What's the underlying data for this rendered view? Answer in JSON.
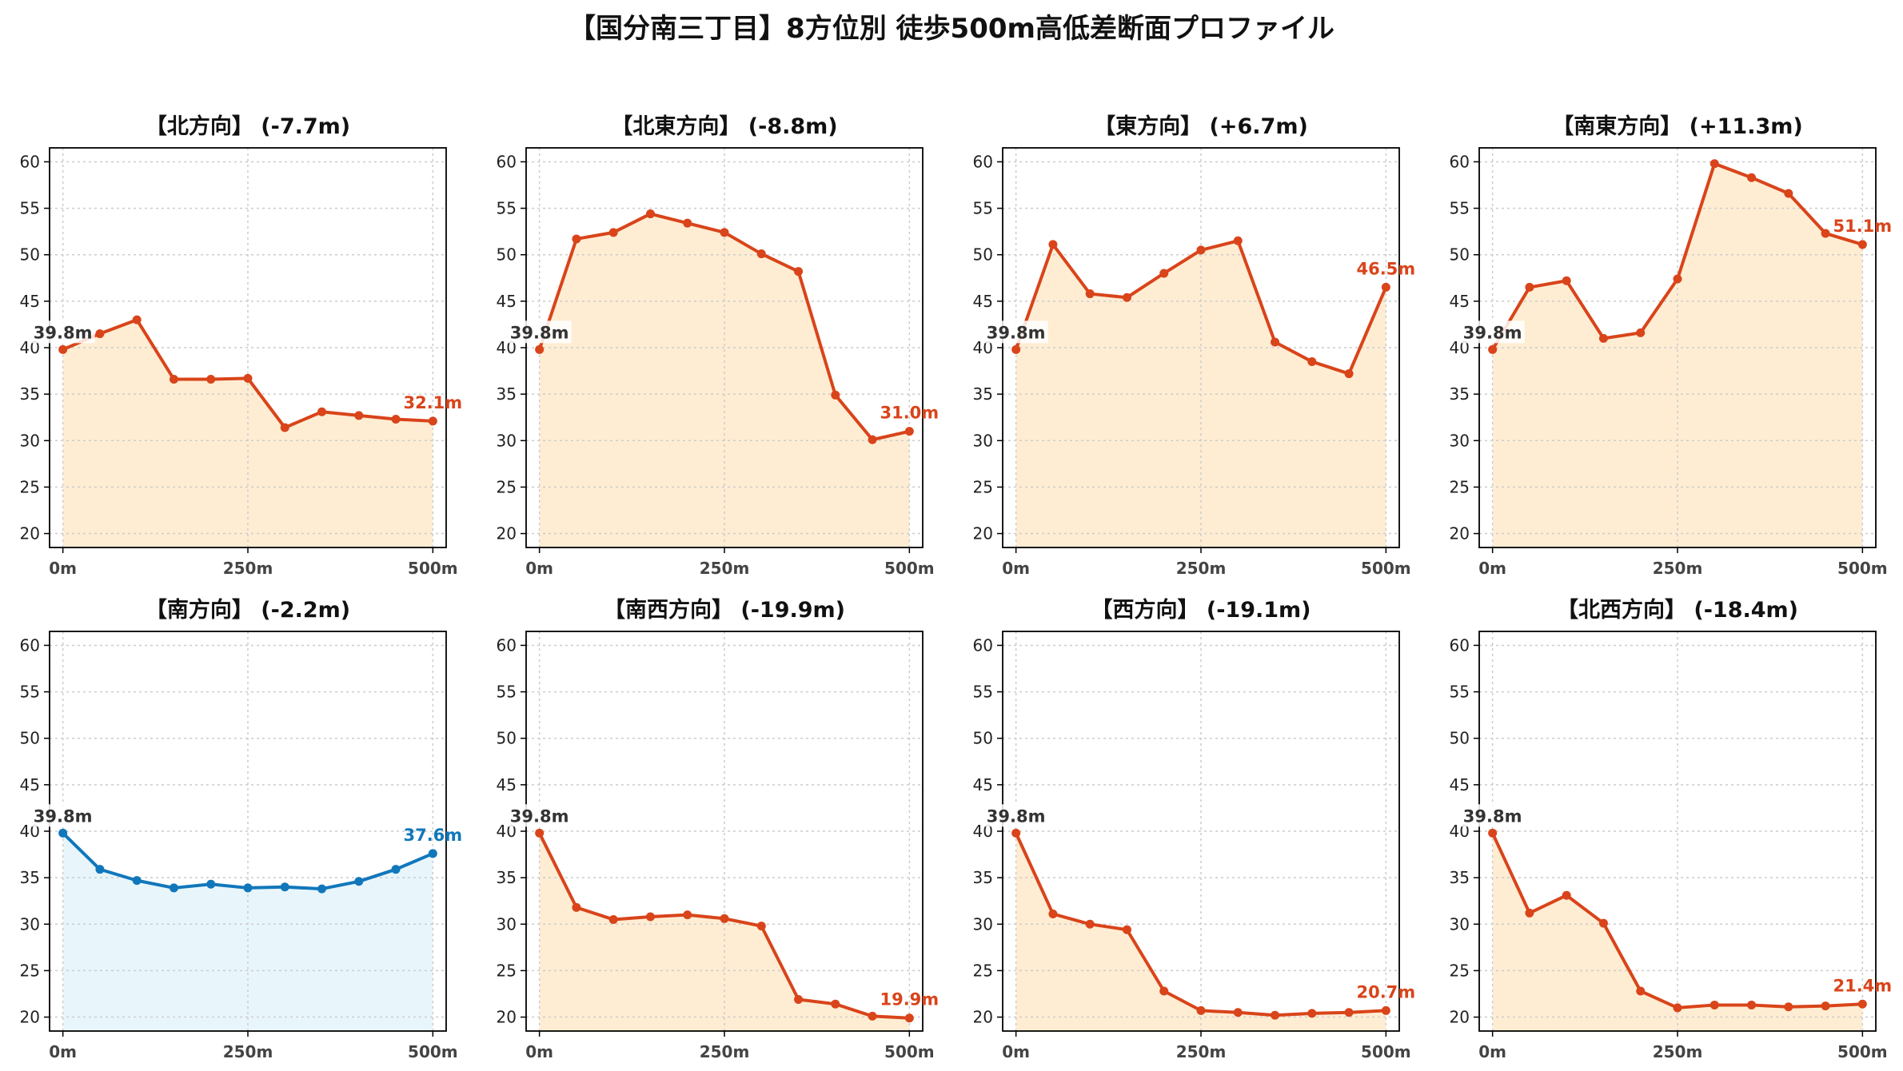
{
  "figure": {
    "title": "【国分南三丁目】8方位別 徒歩500m高低差断面プロファイル"
  },
  "colors": {
    "down_line": "#d9441a",
    "down_fill": "#ffedd3",
    "up_line": "#1177bb",
    "up_fill": "#e8f6fc",
    "start_label": "#333333",
    "grid": "#cccccc"
  },
  "chart_data": [
    {
      "type": "area",
      "title": "【北方向】 (-7.7m)",
      "x": [
        0,
        50,
        100,
        150,
        200,
        250,
        300,
        350,
        400,
        450,
        500
      ],
      "values": [
        39.8,
        41.5,
        43.0,
        36.6,
        36.6,
        36.7,
        31.4,
        33.1,
        32.7,
        32.3,
        32.1
      ],
      "xticks": [
        "0m",
        "250m",
        "500m"
      ],
      "xtick_values": [
        0,
        250,
        500
      ],
      "yticks": [
        20,
        25,
        30,
        35,
        40,
        45,
        50,
        55,
        60
      ],
      "ylim": [
        18.5,
        61.5
      ],
      "xlim": [
        -18,
        518
      ],
      "start_label": "39.8m",
      "end_label": "32.1m",
      "style": "down",
      "grid": true
    },
    {
      "type": "area",
      "title": "【北東方向】 (-8.8m)",
      "x": [
        0,
        50,
        100,
        150,
        200,
        250,
        300,
        350,
        400,
        450,
        500
      ],
      "values": [
        39.8,
        51.7,
        52.4,
        54.4,
        53.4,
        52.4,
        50.1,
        48.2,
        34.9,
        30.1,
        31.0
      ],
      "xticks": [
        "0m",
        "250m",
        "500m"
      ],
      "xtick_values": [
        0,
        250,
        500
      ],
      "yticks": [
        20,
        25,
        30,
        35,
        40,
        45,
        50,
        55,
        60
      ],
      "ylim": [
        18.5,
        61.5
      ],
      "xlim": [
        -18,
        518
      ],
      "start_label": "39.8m",
      "end_label": "31.0m",
      "style": "down",
      "grid": true
    },
    {
      "type": "area",
      "title": "【東方向】 (+6.7m)",
      "x": [
        0,
        50,
        100,
        150,
        200,
        250,
        300,
        350,
        400,
        450,
        500
      ],
      "values": [
        39.8,
        51.1,
        45.8,
        45.4,
        48.0,
        50.5,
        51.5,
        40.6,
        38.5,
        37.2,
        46.5
      ],
      "xticks": [
        "0m",
        "250m",
        "500m"
      ],
      "xtick_values": [
        0,
        250,
        500
      ],
      "yticks": [
        20,
        25,
        30,
        35,
        40,
        45,
        50,
        55,
        60
      ],
      "ylim": [
        18.5,
        61.5
      ],
      "xlim": [
        -18,
        518
      ],
      "start_label": "39.8m",
      "end_label": "46.5m",
      "style": "down",
      "grid": true
    },
    {
      "type": "area",
      "title": "【南東方向】 (+11.3m)",
      "x": [
        0,
        50,
        100,
        150,
        200,
        250,
        300,
        350,
        400,
        450,
        500
      ],
      "values": [
        39.8,
        46.5,
        47.2,
        41.0,
        41.6,
        47.4,
        59.8,
        58.3,
        56.6,
        52.3,
        51.1
      ],
      "xticks": [
        "0m",
        "250m",
        "500m"
      ],
      "xtick_values": [
        0,
        250,
        500
      ],
      "yticks": [
        20,
        25,
        30,
        35,
        40,
        45,
        50,
        55,
        60
      ],
      "ylim": [
        18.5,
        61.5
      ],
      "xlim": [
        -18,
        518
      ],
      "start_label": "39.8m",
      "end_label": "51.1m",
      "style": "down",
      "grid": true
    },
    {
      "type": "area",
      "title": "【南方向】 (-2.2m)",
      "x": [
        0,
        50,
        100,
        150,
        200,
        250,
        300,
        350,
        400,
        450,
        500
      ],
      "values": [
        39.8,
        35.9,
        34.7,
        33.9,
        34.3,
        33.9,
        34.0,
        33.8,
        34.6,
        35.9,
        37.6
      ],
      "xticks": [
        "0m",
        "250m",
        "500m"
      ],
      "xtick_values": [
        0,
        250,
        500
      ],
      "yticks": [
        20,
        25,
        30,
        35,
        40,
        45,
        50,
        55,
        60
      ],
      "ylim": [
        18.5,
        61.5
      ],
      "xlim": [
        -18,
        518
      ],
      "start_label": "39.8m",
      "end_label": "37.6m",
      "style": "up",
      "grid": true
    },
    {
      "type": "area",
      "title": "【南西方向】 (-19.9m)",
      "x": [
        0,
        50,
        100,
        150,
        200,
        250,
        300,
        350,
        400,
        450,
        500
      ],
      "values": [
        39.8,
        31.8,
        30.5,
        30.8,
        31.0,
        30.6,
        29.8,
        21.9,
        21.4,
        20.1,
        19.9
      ],
      "xticks": [
        "0m",
        "250m",
        "500m"
      ],
      "xtick_values": [
        0,
        250,
        500
      ],
      "yticks": [
        20,
        25,
        30,
        35,
        40,
        45,
        50,
        55,
        60
      ],
      "ylim": [
        18.5,
        61.5
      ],
      "xlim": [
        -18,
        518
      ],
      "start_label": "39.8m",
      "end_label": "19.9m",
      "style": "down",
      "grid": true
    },
    {
      "type": "area",
      "title": "【西方向】 (-19.1m)",
      "x": [
        0,
        50,
        100,
        150,
        200,
        250,
        300,
        350,
        400,
        450,
        500
      ],
      "values": [
        39.8,
        31.1,
        30.0,
        29.4,
        22.8,
        20.7,
        20.5,
        20.2,
        20.4,
        20.5,
        20.7
      ],
      "xticks": [
        "0m",
        "250m",
        "500m"
      ],
      "xtick_values": [
        0,
        250,
        500
      ],
      "yticks": [
        20,
        25,
        30,
        35,
        40,
        45,
        50,
        55,
        60
      ],
      "ylim": [
        18.5,
        61.5
      ],
      "xlim": [
        -18,
        518
      ],
      "start_label": "39.8m",
      "end_label": "20.7m",
      "style": "down",
      "grid": true
    },
    {
      "type": "area",
      "title": "【北西方向】 (-18.4m)",
      "x": [
        0,
        50,
        100,
        150,
        200,
        250,
        300,
        350,
        400,
        450,
        500
      ],
      "values": [
        39.8,
        31.2,
        33.1,
        30.1,
        22.8,
        21.0,
        21.3,
        21.3,
        21.1,
        21.2,
        21.4
      ],
      "xticks": [
        "0m",
        "250m",
        "500m"
      ],
      "xtick_values": [
        0,
        250,
        500
      ],
      "yticks": [
        20,
        25,
        30,
        35,
        40,
        45,
        50,
        55,
        60
      ],
      "ylim": [
        18.5,
        61.5
      ],
      "xlim": [
        -18,
        518
      ],
      "start_label": "39.8m",
      "end_label": "21.4m",
      "style": "down",
      "grid": true
    }
  ]
}
